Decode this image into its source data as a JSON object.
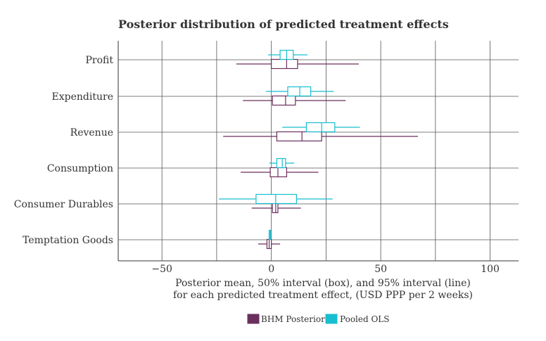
{
  "chart_data": {
    "type": "box",
    "title": "Posterior distribution of predicted treatment effects",
    "xlabel_lines": [
      "Posterior mean, 50% interval (box), and 95% interval (line)",
      "for each predicted treatment effect, (USD PPP per 2 weeks)"
    ],
    "xlim": [
      -70,
      113
    ],
    "xticks": [
      -50,
      0,
      50,
      100
    ],
    "xtick_labels": [
      "−50",
      "0",
      "50",
      "100"
    ],
    "grid": true,
    "categories": [
      "Profit",
      "Expenditure",
      "Revenue",
      "Consumption",
      "Consumer Durables",
      "Temptation Goods"
    ],
    "series": [
      {
        "name": "BHM Posterior",
        "color": "#6b2f5e",
        "stats": [
          {
            "low": -16,
            "q1": 0,
            "mean": 7,
            "q3": 12,
            "high": 40
          },
          {
            "low": -13,
            "q1": 0.5,
            "mean": 6.5,
            "q3": 11,
            "high": 34
          },
          {
            "low": -22,
            "q1": 2.5,
            "mean": 14,
            "q3": 23,
            "high": 67
          },
          {
            "low": -14,
            "q1": -0.5,
            "mean": 3,
            "q3": 7,
            "high": 21.5
          },
          {
            "low": -9,
            "q1": 0.5,
            "mean": 2,
            "q3": 3,
            "high": 13.5
          },
          {
            "low": -6,
            "q1": -2,
            "mean": -1,
            "q3": 0,
            "high": 4
          }
        ]
      },
      {
        "name": "Pooled OLS",
        "color": "#17becf",
        "stats": [
          {
            "low": -1.5,
            "q1": 4,
            "mean": 7,
            "q3": 10,
            "high": 16.5
          },
          {
            "low": -2.5,
            "q1": 7.5,
            "mean": 13,
            "q3": 18,
            "high": 28.5
          },
          {
            "low": 5,
            "q1": 16,
            "mean": 23,
            "q3": 29,
            "high": 40.5
          },
          {
            "low": -1,
            "q1": 2.5,
            "mean": 5,
            "q3": 6.5,
            "high": 10.5
          },
          {
            "low": -24,
            "q1": -7,
            "mean": 2,
            "q3": 11.5,
            "high": 28
          },
          {
            "low": -1.2,
            "q1": -1,
            "mean": -0.8,
            "q3": -0.6,
            "high": -0.4
          }
        ]
      }
    ],
    "legend": {
      "position": "bottom-center",
      "entries": [
        "BHM Posterior",
        "Pooled OLS"
      ],
      "colors": [
        "#6b2f5e",
        "#17becf"
      ]
    }
  }
}
